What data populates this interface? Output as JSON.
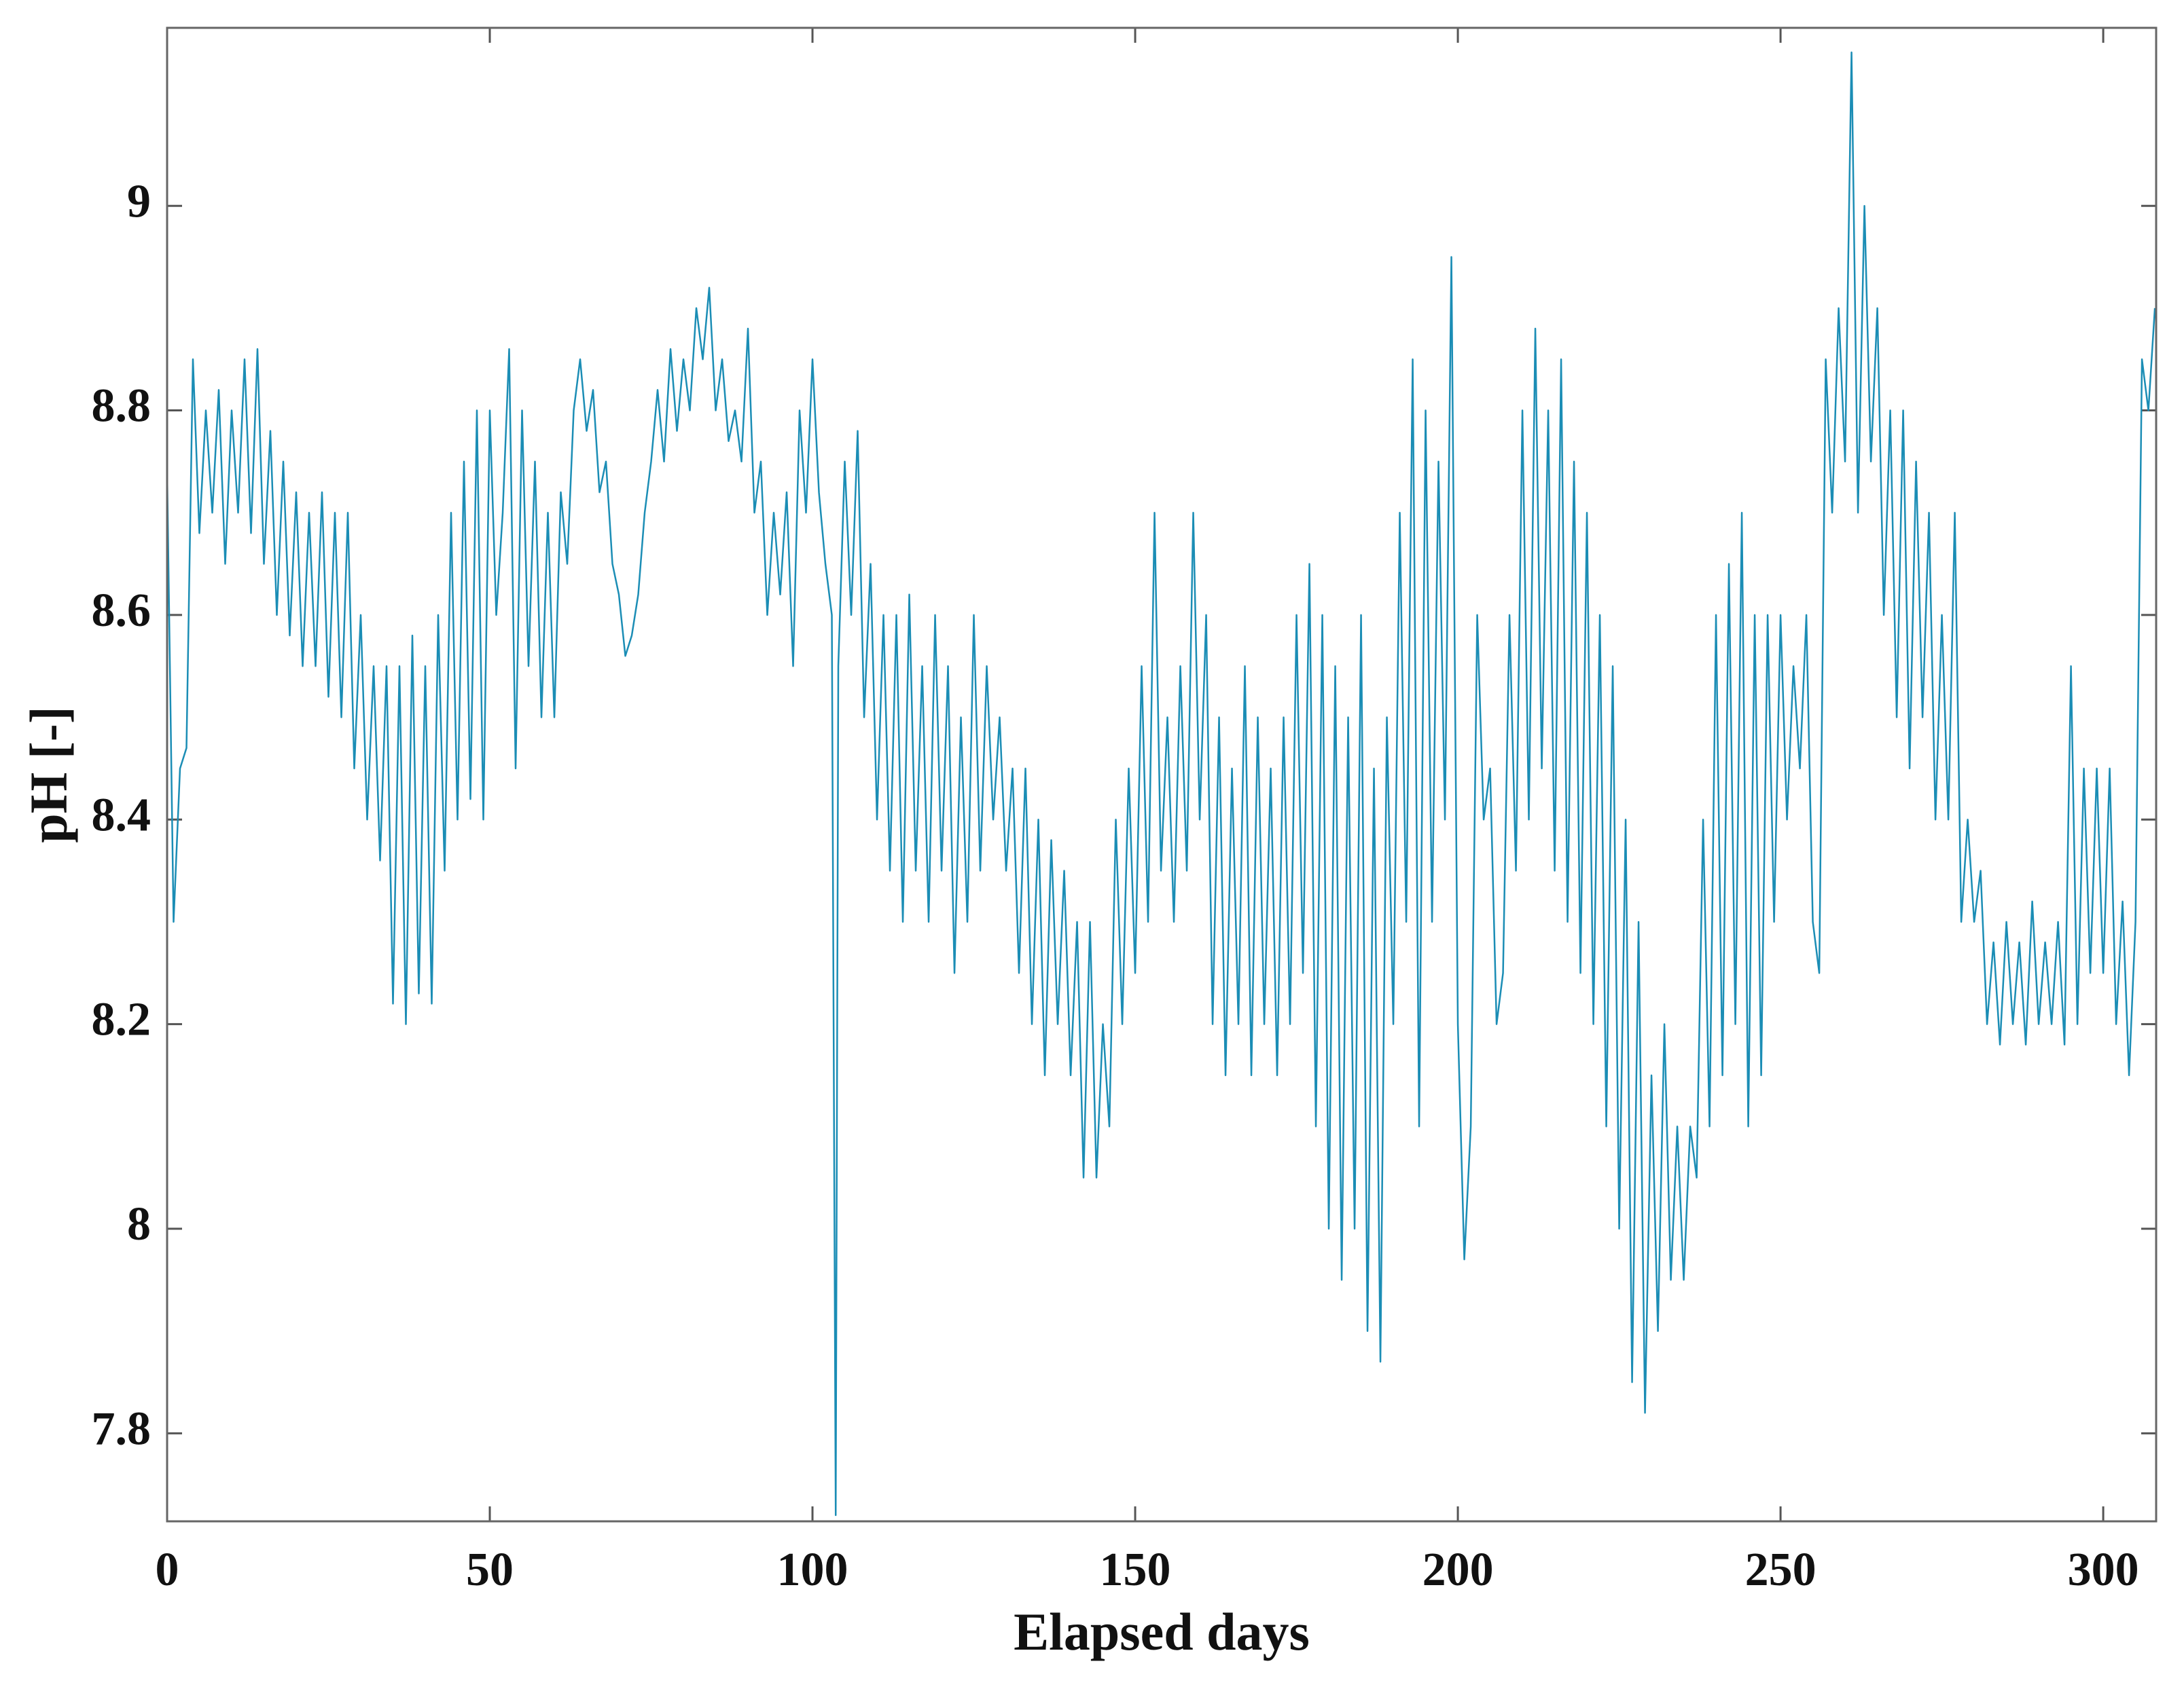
{
  "chart_data": {
    "type": "line",
    "xlabel": "Elapsed days",
    "ylabel": "pH [-]",
    "xlim": [
      0,
      308.2
    ],
    "ylim": [
      7.714,
      9.174
    ],
    "xticks": [
      0,
      50,
      100,
      150,
      200,
      250,
      300
    ],
    "yticks": [
      7.8,
      8,
      8.2,
      8.4,
      8.6,
      8.8,
      9
    ],
    "grid": false,
    "series": [
      {
        "name": "pH",
        "color": "#1b8db5",
        "x": [
          0,
          1,
          2,
          3,
          4,
          5,
          6,
          7,
          8,
          9,
          10,
          11,
          12,
          13,
          14,
          15,
          16,
          17,
          18,
          19,
          20,
          21,
          22,
          23,
          24,
          25,
          26,
          27,
          28,
          29,
          30,
          31,
          32,
          33,
          34,
          35,
          36,
          37,
          38,
          39,
          40,
          41,
          42,
          43,
          44,
          45,
          46,
          47,
          48,
          49,
          50,
          51,
          52,
          53,
          54,
          55,
          56,
          57,
          58,
          59,
          60,
          61,
          62,
          63,
          64,
          65,
          66,
          67,
          68,
          69,
          70,
          71,
          72,
          73,
          74,
          75,
          76,
          77,
          78,
          79,
          80,
          81,
          82,
          83,
          84,
          85,
          86,
          87,
          88,
          89,
          90,
          91,
          92,
          93,
          94,
          95,
          96,
          97,
          98,
          99,
          100,
          101,
          102,
          103,
          103.6,
          104,
          105,
          106,
          107,
          108,
          109,
          110,
          111,
          112,
          113,
          114,
          115,
          116,
          117,
          118,
          119,
          120,
          121,
          122,
          123,
          124,
          125,
          126,
          127,
          128,
          129,
          130,
          131,
          132,
          133,
          134,
          135,
          136,
          137,
          138,
          139,
          140,
          141,
          142,
          143,
          144,
          145,
          146,
          147,
          148,
          149,
          150,
          151,
          152,
          153,
          154,
          155,
          156,
          157,
          158,
          159,
          160,
          161,
          162,
          163,
          164,
          165,
          166,
          167,
          168,
          169,
          170,
          171,
          172,
          173,
          174,
          175,
          176,
          177,
          178,
          179,
          180,
          181,
          182,
          183,
          184,
          185,
          186,
          187,
          188,
          189,
          190,
          191,
          192,
          193,
          194,
          195,
          196,
          197,
          198,
          199,
          200,
          201,
          202,
          203,
          204,
          205,
          206,
          207,
          208,
          209,
          210,
          211,
          212,
          213,
          214,
          215,
          216,
          217,
          218,
          219,
          220,
          221,
          222,
          223,
          224,
          225,
          226,
          227,
          228,
          229,
          230,
          231,
          232,
          233,
          234,
          235,
          236,
          237,
          238,
          239,
          240,
          241,
          242,
          243,
          244,
          245,
          246,
          247,
          248,
          249,
          250,
          251,
          252,
          253,
          254,
          255,
          256,
          257,
          258,
          259,
          260,
          261,
          262,
          263,
          264,
          265,
          266,
          267,
          268,
          269,
          270,
          271,
          272,
          273,
          274,
          275,
          276,
          277,
          278,
          279,
          280,
          281,
          282,
          283,
          284,
          285,
          286,
          287,
          288,
          289,
          290,
          291,
          292,
          293,
          294,
          295,
          296,
          297,
          298,
          299,
          300,
          301,
          302,
          303,
          304,
          305,
          306,
          307,
          308
        ],
        "values": [
          8.74,
          8.3,
          8.45,
          8.47,
          8.85,
          8.68,
          8.8,
          8.7,
          8.82,
          8.65,
          8.8,
          8.7,
          8.85,
          8.68,
          8.86,
          8.65,
          8.78,
          8.6,
          8.75,
          8.58,
          8.72,
          8.55,
          8.7,
          8.55,
          8.72,
          8.52,
          8.7,
          8.5,
          8.7,
          8.45,
          8.6,
          8.4,
          8.55,
          8.36,
          8.55,
          8.22,
          8.55,
          8.2,
          8.58,
          8.23,
          8.55,
          8.22,
          8.6,
          8.35,
          8.7,
          8.4,
          8.75,
          8.42,
          8.8,
          8.4,
          8.8,
          8.6,
          8.7,
          8.86,
          8.45,
          8.8,
          8.55,
          8.75,
          8.5,
          8.7,
          8.5,
          8.72,
          8.65,
          8.8,
          8.85,
          8.78,
          8.82,
          8.72,
          8.75,
          8.65,
          8.62,
          8.56,
          8.58,
          8.62,
          8.7,
          8.75,
          8.82,
          8.75,
          8.86,
          8.78,
          8.85,
          8.8,
          8.9,
          8.85,
          8.92,
          8.8,
          8.85,
          8.77,
          8.8,
          8.75,
          8.88,
          8.7,
          8.75,
          8.6,
          8.7,
          8.62,
          8.72,
          8.55,
          8.8,
          8.7,
          8.85,
          8.72,
          8.65,
          8.6,
          7.72,
          8.55,
          8.75,
          8.6,
          8.78,
          8.5,
          8.65,
          8.4,
          8.6,
          8.35,
          8.6,
          8.3,
          8.62,
          8.35,
          8.55,
          8.3,
          8.6,
          8.35,
          8.55,
          8.25,
          8.5,
          8.3,
          8.6,
          8.35,
          8.55,
          8.4,
          8.5,
          8.35,
          8.45,
          8.25,
          8.45,
          8.2,
          8.4,
          8.15,
          8.38,
          8.2,
          8.35,
          8.15,
          8.3,
          8.05,
          8.3,
          8.05,
          8.2,
          8.1,
          8.4,
          8.2,
          8.45,
          8.25,
          8.55,
          8.3,
          8.7,
          8.35,
          8.5,
          8.3,
          8.55,
          8.35,
          8.7,
          8.4,
          8.6,
          8.2,
          8.5,
          8.15,
          8.45,
          8.2,
          8.55,
          8.15,
          8.5,
          8.2,
          8.45,
          8.15,
          8.5,
          8.2,
          8.6,
          8.25,
          8.65,
          8.1,
          8.6,
          8.0,
          8.55,
          7.95,
          8.5,
          8.0,
          8.6,
          7.9,
          8.45,
          7.87,
          8.5,
          8.2,
          8.7,
          8.3,
          8.85,
          8.1,
          8.8,
          8.3,
          8.75,
          8.4,
          8.95,
          8.2,
          7.97,
          8.1,
          8.6,
          8.4,
          8.45,
          8.2,
          8.25,
          8.6,
          8.35,
          8.8,
          8.4,
          8.88,
          8.45,
          8.8,
          8.35,
          8.85,
          8.3,
          8.75,
          8.25,
          8.7,
          8.2,
          8.6,
          8.1,
          8.55,
          8.0,
          8.4,
          7.85,
          8.3,
          7.82,
          8.15,
          7.9,
          8.2,
          7.95,
          8.1,
          7.95,
          8.1,
          8.05,
          8.4,
          8.1,
          8.6,
          8.15,
          8.65,
          8.2,
          8.7,
          8.1,
          8.6,
          8.15,
          8.6,
          8.3,
          8.6,
          8.4,
          8.55,
          8.45,
          8.6,
          8.3,
          8.25,
          8.85,
          8.7,
          8.9,
          8.75,
          9.15,
          8.7,
          9.0,
          8.75,
          8.9,
          8.6,
          8.8,
          8.5,
          8.8,
          8.45,
          8.75,
          8.5,
          8.7,
          8.4,
          8.6,
          8.4,
          8.7,
          8.3,
          8.4,
          8.3,
          8.35,
          8.2,
          8.28,
          8.18,
          8.3,
          8.2,
          8.28,
          8.18,
          8.32,
          8.2,
          8.28,
          8.2,
          8.3,
          8.18,
          8.55,
          8.2,
          8.45,
          8.25,
          8.45,
          8.25,
          8.45,
          8.2,
          8.32,
          8.15,
          8.3,
          8.85,
          8.8,
          8.9
        ]
      }
    ]
  }
}
